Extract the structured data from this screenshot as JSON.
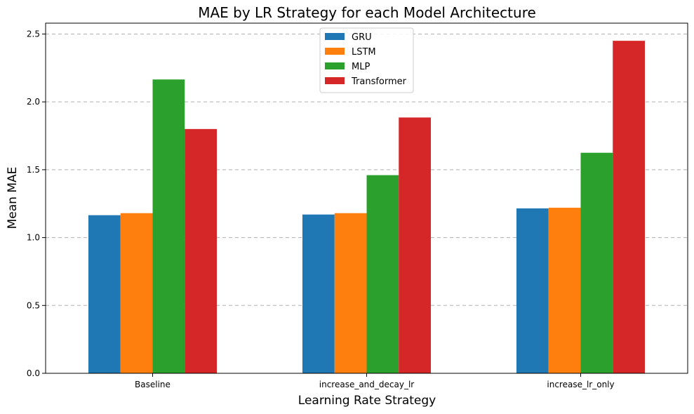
{
  "chart_data": {
    "type": "bar",
    "title": "MAE by LR Strategy for each Model Architecture",
    "xlabel": "Learning Rate Strategy",
    "ylabel": "Mean MAE",
    "categories": [
      "Baseline",
      "increase_and_decay_lr",
      "increase_lr_only"
    ],
    "series": [
      {
        "name": "GRU",
        "color": "#1f77b4",
        "values": [
          1.165,
          1.17,
          1.215
        ]
      },
      {
        "name": "LSTM",
        "color": "#ff7f0e",
        "values": [
          1.18,
          1.18,
          1.22
        ]
      },
      {
        "name": "MLP",
        "color": "#2ca02c",
        "values": [
          2.165,
          1.46,
          1.625
        ]
      },
      {
        "name": "Transformer",
        "color": "#d62728",
        "values": [
          1.8,
          1.885,
          2.45
        ]
      }
    ],
    "ylim": [
      0,
      2.58
    ],
    "yticks": [
      "0.0",
      "0.5",
      "1.0",
      "1.5",
      "2.0",
      "2.5"
    ],
    "grid": "y-dashed",
    "legend": "top-center"
  }
}
